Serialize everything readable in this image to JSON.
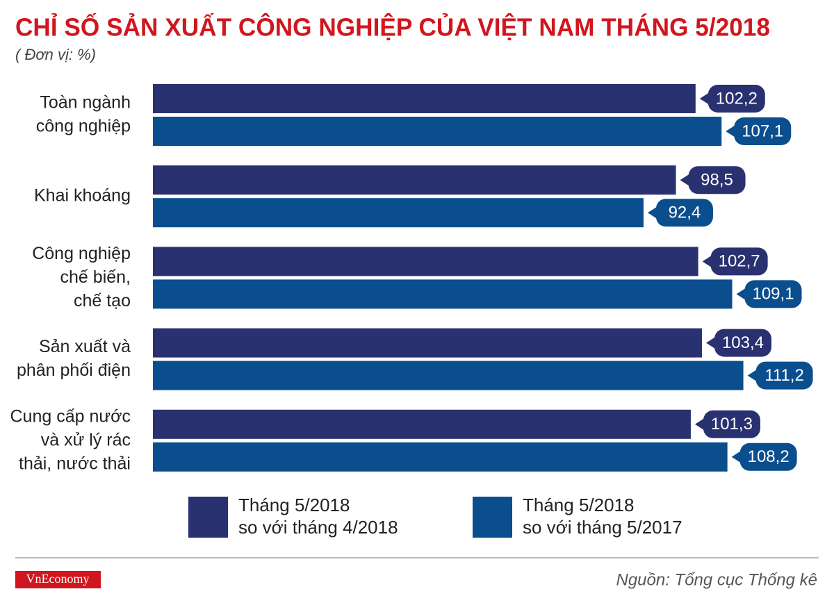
{
  "chart_data": {
    "type": "bar",
    "orientation": "horizontal",
    "title": "CHỈ SỐ SẢN XUẤT CÔNG NGHIỆP CỦA VIỆT NAM THÁNG 5/2018",
    "subtitle": "( Đơn vị: %)",
    "categories": [
      "Toàn ngành\ncông nghiệp",
      "Khai khoáng",
      "Công nghiệp\nchế biến,\nchế tạo",
      "Sản xuất và\nphân phối điện",
      "Cung cấp nước\nvà xử lý rác\nthải, nước thải"
    ],
    "series": [
      {
        "name": "Tháng 5/2018\nso với tháng 4/2018",
        "color": "#2a3170",
        "values": [
          102.2,
          98.5,
          102.7,
          103.4,
          101.3
        ],
        "value_labels": [
          "102,2",
          "98,5",
          "102,7",
          "103,4",
          "101,3"
        ]
      },
      {
        "name": "Tháng 5/2018\nso với tháng 5/2017",
        "color": "#0b4e8e",
        "values": [
          107.1,
          92.4,
          109.1,
          111.2,
          108.2
        ],
        "value_labels": [
          "107,1",
          "92,4",
          "109,1",
          "111,2",
          "108,2"
        ]
      }
    ],
    "source": "Nguồn: Tổng cục Thống kê",
    "logo": "VnEconomy"
  }
}
